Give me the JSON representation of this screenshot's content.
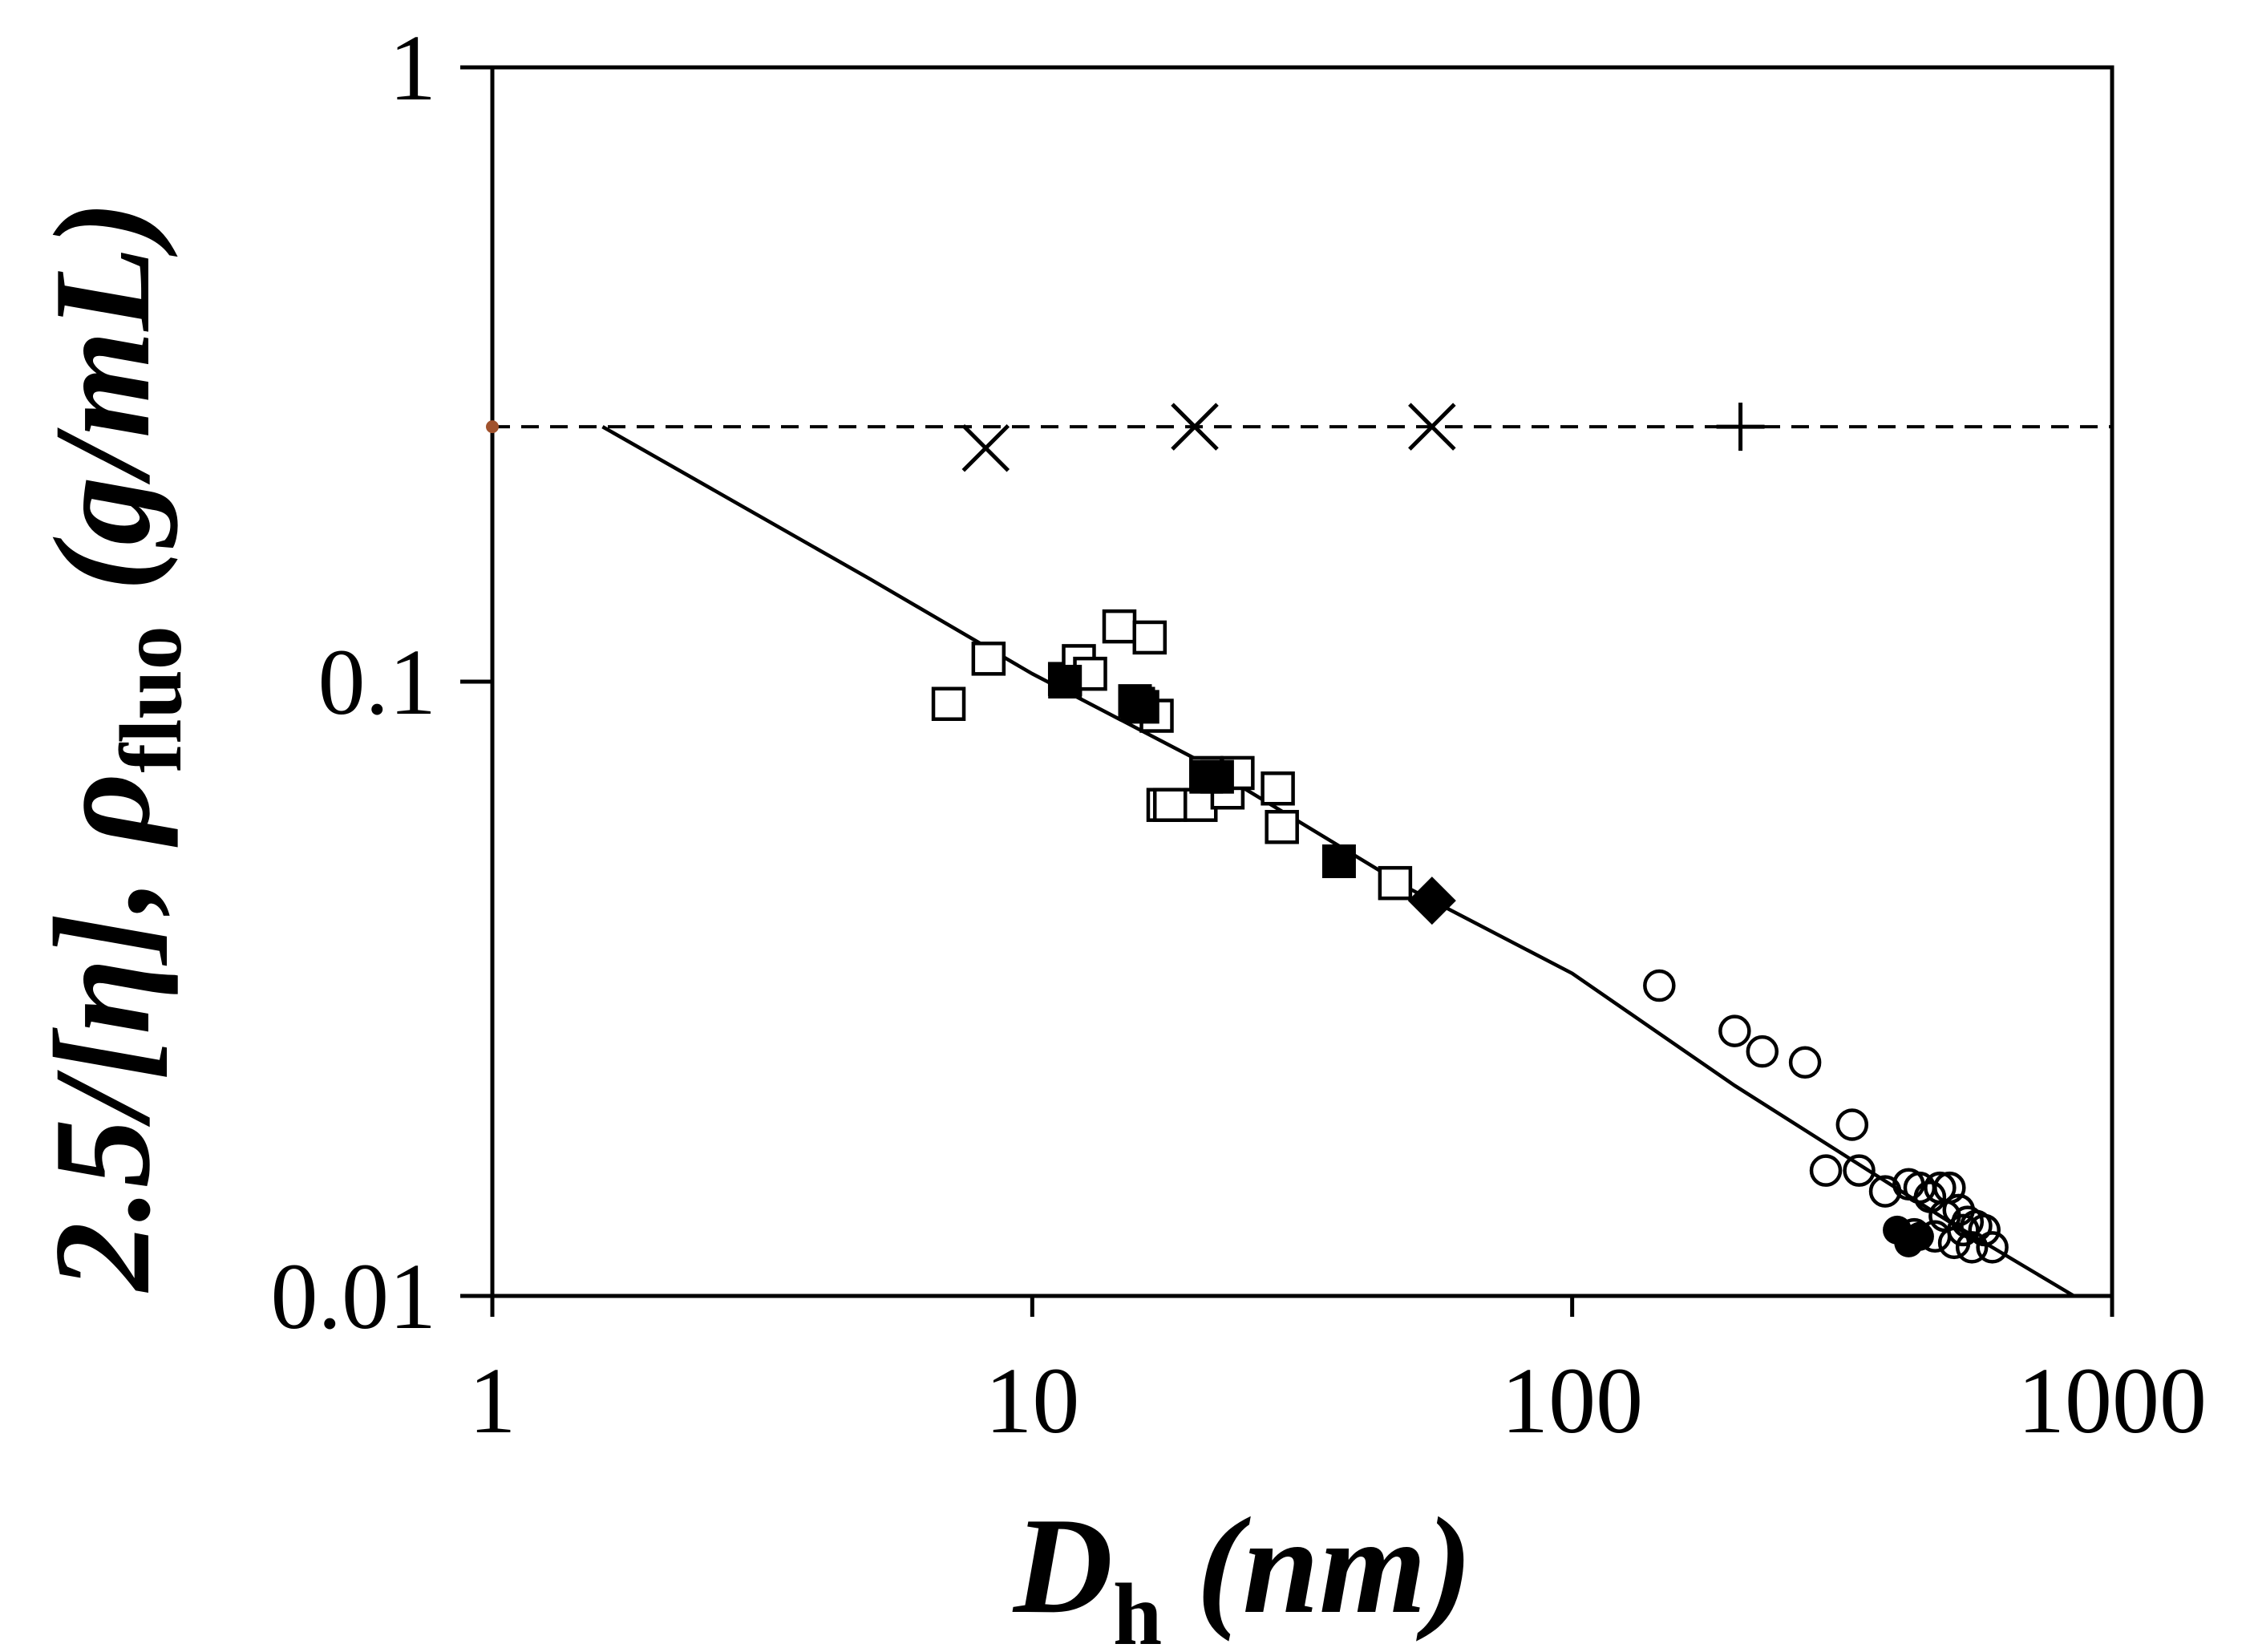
{
  "chart_data": {
    "type": "scatter",
    "x_scale": "log",
    "y_scale": "log",
    "xlim": [
      1,
      1000
    ],
    "ylim": [
      0.01,
      1
    ],
    "x_ticks": [
      {
        "value": 1,
        "label": "1"
      },
      {
        "value": 10,
        "label": "10"
      },
      {
        "value": 100,
        "label": "100"
      },
      {
        "value": 1000,
        "label": "1000"
      }
    ],
    "y_ticks": [
      {
        "value": 0.01,
        "label": "0.01"
      },
      {
        "value": 0.1,
        "label": "0.1"
      },
      {
        "value": 1,
        "label": "1"
      }
    ],
    "xlabel": {
      "main": "D",
      "sub": "h",
      "rest": " (nm)"
    },
    "ylabel": {
      "main": "2.5/[η], ρ",
      "sub": "fluo",
      "rest": " (g/mL)"
    },
    "colors": {
      "axis": "#000000",
      "marker": "#000000",
      "reference_dot": "#a0522d"
    },
    "reference_line": {
      "y": 0.26,
      "style": "dashed"
    },
    "reference_dot": {
      "x": 1,
      "y": 0.26
    },
    "fit_line": {
      "x": [
        1.6,
        5,
        10,
        20,
        50,
        100,
        200,
        500,
        850
      ],
      "y": [
        0.26,
        0.147,
        0.103,
        0.075,
        0.046,
        0.0335,
        0.022,
        0.0132,
        0.01
      ]
    },
    "series": [
      {
        "name": "cross",
        "marker": "x",
        "x": [
          8.2,
          20,
          55
        ],
        "y": [
          0.24,
          0.26,
          0.26
        ]
      },
      {
        "name": "plus",
        "marker": "plus",
        "x": [
          205
        ],
        "y": [
          0.26
        ]
      },
      {
        "name": "open-squares",
        "marker": "square-open",
        "x": [
          7,
          8.3,
          11.5,
          12.2,
          12.8,
          14.5,
          16.5,
          17,
          17.5,
          18,
          20.5,
          21,
          23,
          24,
          28.5,
          29,
          47,
          15.7
        ],
        "y": [
          0.092,
          0.109,
          0.101,
          0.108,
          0.103,
          0.123,
          0.118,
          0.088,
          0.063,
          0.063,
          0.063,
          0.071,
          0.066,
          0.071,
          0.067,
          0.058,
          0.047,
          0.092
        ]
      },
      {
        "name": "filled-squares",
        "marker": "square-filled",
        "x": [
          11.5,
          15.5,
          16,
          21,
          22,
          37
        ],
        "y": [
          0.1,
          0.093,
          0.091,
          0.07,
          0.07,
          0.051
        ]
      },
      {
        "name": "filled-diamond",
        "marker": "diamond-filled",
        "x": [
          55
        ],
        "y": [
          0.044
        ]
      },
      {
        "name": "open-circles",
        "marker": "circle-open",
        "x": [
          145,
          200,
          225,
          270,
          330,
          295,
          340,
          380,
          420,
          440,
          460,
          480,
          500,
          520,
          540,
          560,
          580,
          600,
          470,
          510,
          550,
          430,
          490,
          530
        ],
        "y": [
          0.032,
          0.027,
          0.025,
          0.024,
          0.019,
          0.016,
          0.016,
          0.0148,
          0.0152,
          0.015,
          0.0145,
          0.015,
          0.015,
          0.0138,
          0.0132,
          0.013,
          0.0128,
          0.012,
          0.0125,
          0.0122,
          0.012,
          0.0126,
          0.0135,
          0.0128
        ]
      },
      {
        "name": "filled-circles",
        "marker": "circle-filled",
        "x": [
          400,
          420,
          440
        ],
        "y": [
          0.0128,
          0.0122,
          0.0125
        ]
      }
    ]
  }
}
